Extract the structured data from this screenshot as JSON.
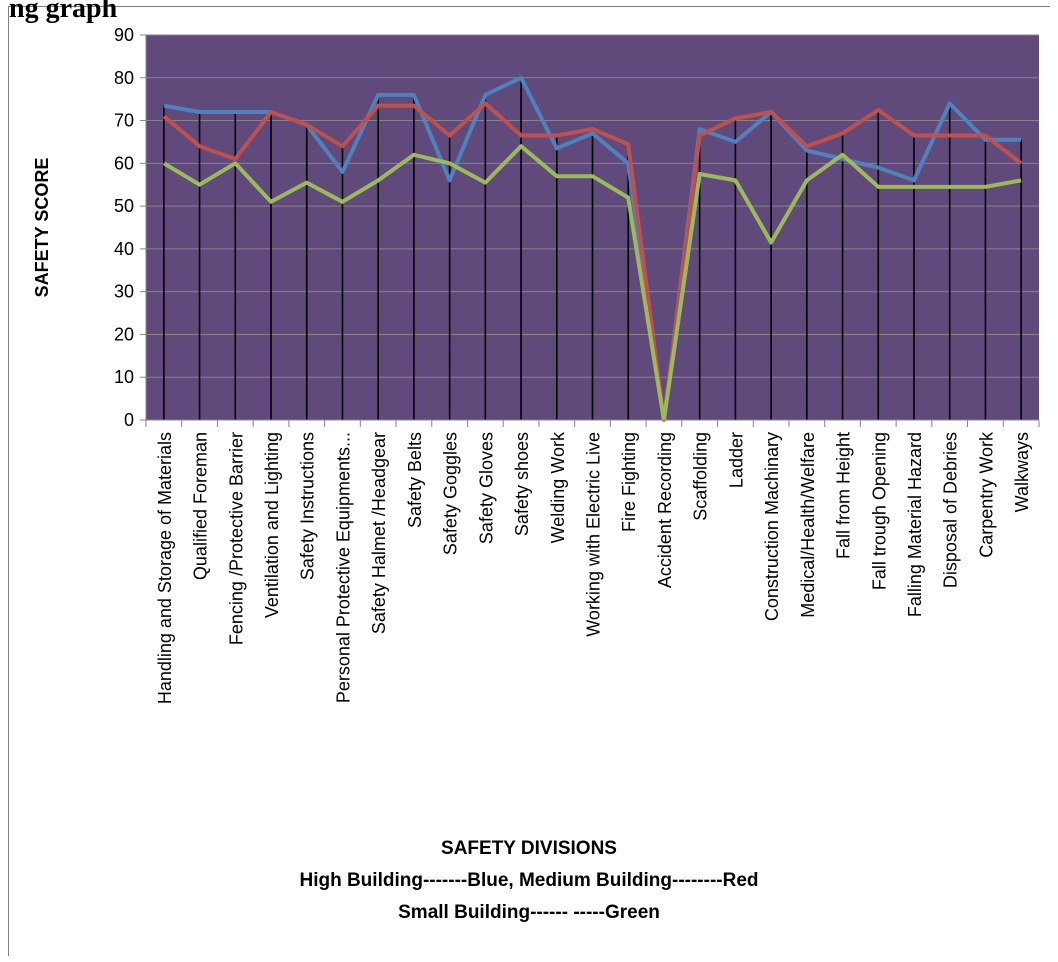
{
  "page_heading_fragment": "ng graph",
  "chart_data": {
    "type": "line",
    "ylabel": "SAFETY SCORE",
    "xlabel": "SAFETY DIVISIONS",
    "legend_lines": [
      "High Building-------Blue, Medium Building--------Red",
      "Small Building------ -----Green"
    ],
    "ylim": [
      0,
      90
    ],
    "yticks": [
      0,
      10,
      20,
      30,
      40,
      50,
      60,
      70,
      80,
      90
    ],
    "grid": true,
    "plot_background": "#604a7b",
    "categories": [
      "Handling and Storage of Materials",
      "Qualified Foreman",
      "Fencing /Protective Barrier",
      "Ventilation and Lighting",
      "Safety Instructions",
      "Personal Protective Equipments...",
      "Safety  Halmet /Headgear",
      "Safety Belts",
      "Safety Goggles",
      "Safety Gloves",
      "Safety shoes",
      "Welding Work",
      "Working with Electric Live",
      "Fire Fighting",
      "Accident Recording",
      "Scaffolding",
      "Ladder",
      "Construction Machinary",
      "Medical/Health/Welfare",
      "Fall from Height",
      "Fall trough Opening",
      "Falling Material Hazard",
      "Disposal of Debries",
      "Carpentry Work",
      "Walkways"
    ],
    "series": [
      {
        "color": "#4f81bd",
        "values": [
          73.5,
          72,
          72,
          72,
          69,
          58,
          76,
          76,
          56,
          76,
          80,
          63.5,
          67,
          60,
          0,
          68,
          65,
          72,
          63,
          61,
          59,
          56,
          74,
          65.5,
          65.5
        ]
      },
      {
        "color": "#c0504d",
        "values": [
          71,
          64,
          61,
          72,
          69,
          64,
          73.5,
          73.5,
          66.5,
          74,
          66.5,
          66.5,
          68,
          64.5,
          0,
          66.5,
          70.5,
          72,
          64,
          67,
          72.5,
          66.5,
          66.5,
          66.5,
          60
        ]
      },
      {
        "color": "#9bbb59",
        "values": [
          60,
          55,
          60,
          51,
          55.5,
          51,
          56,
          62,
          60,
          55.5,
          64,
          57,
          57,
          52,
          0,
          57.5,
          56,
          41.5,
          56,
          62,
          54.5,
          54.5,
          54.5,
          54.5,
          56
        ]
      }
    ],
    "drop_lines": true
  }
}
